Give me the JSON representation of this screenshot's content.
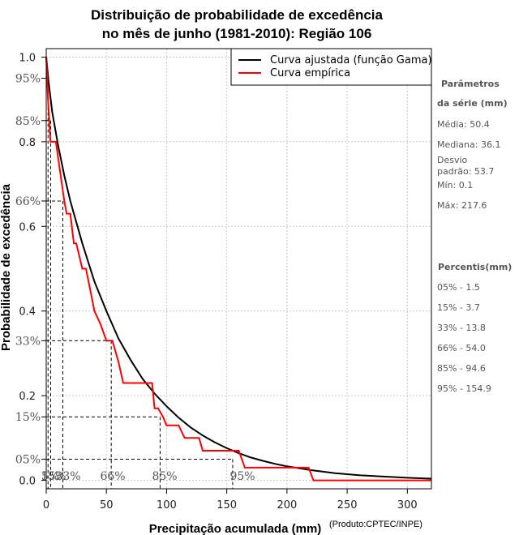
{
  "chart_data": {
    "type": "line",
    "title": [
      "Distribuição de probabilidade de excedência",
      "no mês de junho (1981-2010): Região 106"
    ],
    "xlabel": "Precipitação acumulada (mm)",
    "ylabel": "Probabilidade de excedência",
    "credit": "(Produto:CPTEC/INPE)",
    "xlim": [
      0,
      320
    ],
    "ylim": [
      -0.02,
      1.02
    ],
    "x_ticks": [
      0,
      50,
      100,
      150,
      200,
      250,
      300
    ],
    "y_ticks": [
      {
        "value": 1.0,
        "label": "1.0"
      },
      {
        "value": 0.8,
        "label": "0.8"
      },
      {
        "value": 0.6,
        "label": "0.6"
      },
      {
        "value": 0.4,
        "label": "0.4"
      },
      {
        "value": 0.2,
        "label": "0.2"
      },
      {
        "value": 0.0,
        "label": "0.0"
      }
    ],
    "y_pct_ticks": [
      {
        "value": 0.95,
        "label": "95%"
      },
      {
        "value": 0.85,
        "label": "85%"
      },
      {
        "value": 0.66,
        "label": "66%"
      },
      {
        "value": 0.33,
        "label": "33%"
      },
      {
        "value": 0.15,
        "label": "15%"
      },
      {
        "value": 0.05,
        "label": "05%"
      }
    ],
    "x_pct_labels": [
      "5%",
      "15%",
      "33%",
      "66%",
      "85%",
      "95%"
    ],
    "legend": [
      {
        "label": "Curva ajustada (função Gama)",
        "color": "#000000"
      },
      {
        "label": "Curva empírica",
        "color": "#ff0000"
      }
    ],
    "fitted_curve": {
      "x": [
        0,
        2,
        5,
        10,
        15,
        20,
        30,
        40,
        50,
        60,
        70,
        80,
        90,
        100,
        110,
        120,
        130,
        140,
        150,
        160,
        170,
        180,
        190,
        200,
        220,
        240,
        260,
        280,
        300,
        320
      ],
      "y": [
        1.0,
        0.94,
        0.87,
        0.79,
        0.72,
        0.66,
        0.56,
        0.47,
        0.4,
        0.335,
        0.285,
        0.24,
        0.205,
        0.175,
        0.148,
        0.125,
        0.106,
        0.09,
        0.076,
        0.064,
        0.054,
        0.046,
        0.039,
        0.033,
        0.024,
        0.017,
        0.012,
        0.009,
        0.006,
        0.004
      ]
    },
    "empirical_curve": {
      "x": [
        0,
        0.5,
        1.5,
        3.5,
        8,
        15,
        17,
        20,
        23,
        25,
        30,
        33,
        38,
        40,
        45,
        50,
        55,
        60,
        64,
        70,
        75,
        80,
        88,
        90,
        93,
        97,
        100,
        103,
        110,
        115,
        118,
        127,
        130,
        140,
        152,
        160,
        165,
        175,
        200,
        218,
        222,
        250,
        320
      ],
      "y": [
        1.0,
        0.97,
        0.9,
        0.8,
        0.8,
        0.66,
        0.63,
        0.63,
        0.56,
        0.56,
        0.5,
        0.5,
        0.43,
        0.4,
        0.37,
        0.33,
        0.33,
        0.28,
        0.23,
        0.23,
        0.23,
        0.23,
        0.23,
        0.17,
        0.17,
        0.15,
        0.13,
        0.13,
        0.13,
        0.1,
        0.1,
        0.1,
        0.07,
        0.07,
        0.07,
        0.07,
        0.03,
        0.03,
        0.03,
        0.03,
        0.0,
        0.0,
        0.0
      ]
    },
    "percentile_guides": [
      {
        "p": 0.95,
        "x": 1.5
      },
      {
        "p": 0.85,
        "x": 3.7
      },
      {
        "p": 0.66,
        "x": 13.8
      },
      {
        "p": 0.33,
        "x": 54.0
      },
      {
        "p": 0.15,
        "x": 94.6
      },
      {
        "p": 0.05,
        "x": 154.9
      }
    ],
    "side_panel": {
      "param_heading_1": "Parâmetros",
      "param_heading_2": "da série (mm)",
      "media": "Média: 50.4",
      "mediana": "Mediana: 36.1",
      "desvio_1": "Desvio",
      "desvio_2": "padrão: 53.7",
      "min": "Mín: 0.1",
      "max": "Máx: 217.6",
      "pct_heading": "Percentis(mm)",
      "percentiles": [
        "05% - 1.5",
        "15% - 3.7",
        "33% - 13.8",
        "66% - 54.0",
        "85% - 94.6",
        "95% - 154.9"
      ]
    },
    "grid": true
  }
}
